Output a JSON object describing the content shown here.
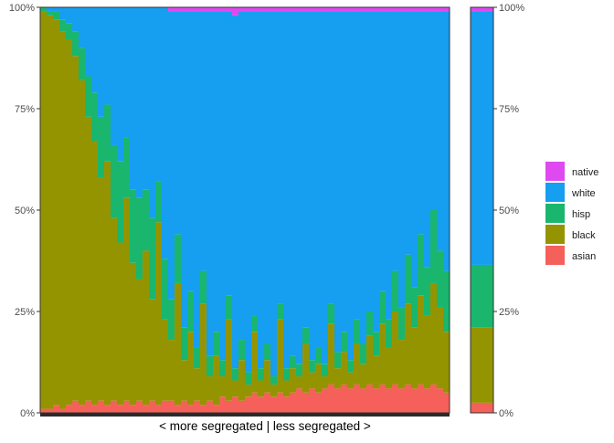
{
  "chart_data": {
    "type": "bar",
    "stacked": true,
    "percent": true,
    "xlabel": "< more segregated | less segregated >",
    "ylabel": "",
    "ylim": [
      0,
      100
    ],
    "y_ticks": [
      "0%",
      "25%",
      "50%",
      "75%",
      "100%"
    ],
    "grid": false,
    "legend_placement": "right",
    "legend": [
      "native",
      "white",
      "hisp",
      "black",
      "asian"
    ],
    "stack_order": [
      "asian",
      "black",
      "hisp",
      "white",
      "native"
    ],
    "colors": {
      "asian": "#F5605A",
      "black": "#949400",
      "hisp": "#1AB66E",
      "white": "#169EF0",
      "native": "#DE4AEF"
    },
    "bars": [
      [
        1,
        98,
        1,
        0,
        0
      ],
      [
        1,
        97,
        1,
        1,
        0
      ],
      [
        2,
        95,
        2,
        1,
        0
      ],
      [
        1,
        93,
        3,
        3,
        0
      ],
      [
        2,
        90,
        4,
        4,
        0
      ],
      [
        3,
        85,
        6,
        6,
        0
      ],
      [
        2,
        80,
        8,
        10,
        0
      ],
      [
        3,
        70,
        10,
        17,
        0
      ],
      [
        2,
        65,
        12,
        21,
        0
      ],
      [
        3,
        55,
        15,
        27,
        0
      ],
      [
        2,
        60,
        14,
        24,
        0
      ],
      [
        3,
        45,
        18,
        34,
        0
      ],
      [
        2,
        40,
        20,
        38,
        0
      ],
      [
        3,
        50,
        15,
        32,
        0
      ],
      [
        2,
        35,
        18,
        45,
        0
      ],
      [
        3,
        30,
        20,
        47,
        0
      ],
      [
        2,
        38,
        15,
        45,
        0
      ],
      [
        3,
        25,
        20,
        52,
        0
      ],
      [
        2,
        45,
        10,
        43,
        0
      ],
      [
        3,
        20,
        15,
        62,
        0
      ],
      [
        3,
        15,
        10,
        71,
        1
      ],
      [
        2,
        30,
        12,
        55,
        1
      ],
      [
        3,
        10,
        8,
        78,
        1
      ],
      [
        2,
        18,
        10,
        69,
        1
      ],
      [
        3,
        8,
        5,
        83,
        1
      ],
      [
        2,
        25,
        8,
        64,
        1
      ],
      [
        3,
        6,
        5,
        85,
        1
      ],
      [
        2,
        12,
        6,
        79,
        1
      ],
      [
        4,
        5,
        4,
        86,
        1
      ],
      [
        3,
        20,
        6,
        70,
        1
      ],
      [
        4,
        4,
        3,
        87,
        2
      ],
      [
        3,
        10,
        5,
        81,
        1
      ],
      [
        4,
        3,
        3,
        89,
        1
      ],
      [
        5,
        15,
        4,
        75,
        1
      ],
      [
        4,
        4,
        3,
        88,
        1
      ],
      [
        5,
        8,
        4,
        82,
        1
      ],
      [
        4,
        3,
        2,
        90,
        1
      ],
      [
        5,
        18,
        4,
        72,
        1
      ],
      [
        4,
        4,
        3,
        88,
        1
      ],
      [
        5,
        6,
        3,
        85,
        1
      ],
      [
        6,
        3,
        3,
        87,
        1
      ],
      [
        5,
        12,
        4,
        78,
        1
      ],
      [
        6,
        4,
        3,
        86,
        1
      ],
      [
        5,
        7,
        4,
        83,
        1
      ],
      [
        6,
        3,
        3,
        87,
        1
      ],
      [
        7,
        15,
        5,
        72,
        1
      ],
      [
        6,
        5,
        4,
        84,
        1
      ],
      [
        7,
        8,
        5,
        79,
        1
      ],
      [
        6,
        4,
        3,
        86,
        1
      ],
      [
        7,
        10,
        6,
        76,
        1
      ],
      [
        6,
        6,
        5,
        82,
        1
      ],
      [
        7,
        12,
        6,
        74,
        1
      ],
      [
        6,
        8,
        6,
        79,
        1
      ],
      [
        7,
        15,
        8,
        69,
        1
      ],
      [
        6,
        10,
        7,
        76,
        1
      ],
      [
        7,
        18,
        10,
        64,
        1
      ],
      [
        6,
        12,
        8,
        73,
        1
      ],
      [
        7,
        20,
        12,
        60,
        1
      ],
      [
        6,
        15,
        10,
        68,
        1
      ],
      [
        7,
        22,
        15,
        55,
        1
      ],
      [
        6,
        18,
        12,
        63,
        1
      ],
      [
        7,
        25,
        18,
        49,
        1
      ],
      [
        6,
        20,
        14,
        59,
        1
      ],
      [
        5,
        15,
        15,
        64,
        1
      ]
    ],
    "summary_bar": [
      2.5,
      18.5,
      15.5,
      62.5,
      1
    ]
  }
}
